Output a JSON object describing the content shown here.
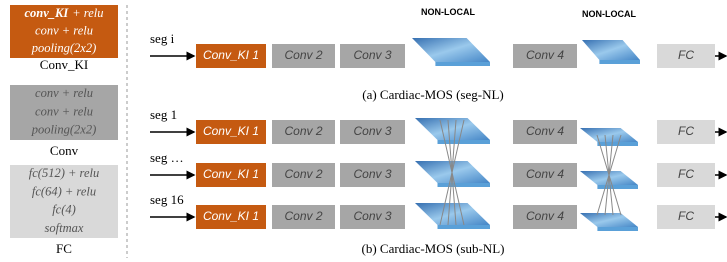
{
  "legend": [
    {
      "head": "conv_KI",
      "lines": [
        "+ relu",
        "conv + relu",
        "pooling(2x2)"
      ],
      "label": "Conv_KI"
    },
    {
      "lines": [
        "conv + relu",
        "conv + relu",
        "pooling(2x2)"
      ],
      "label": "Conv"
    },
    {
      "lines": [
        "fc(512) + relu",
        "fc(64) + relu",
        "fc(4)",
        "softmax"
      ],
      "label": "FC"
    }
  ],
  "top": {
    "headers": [
      "NON-LOCAL",
      "NON-LOCAL"
    ],
    "input": "seg i",
    "blocks": [
      "Conv_KI 1",
      "Conv 2",
      "Conv 3",
      "Conv 4",
      "FC"
    ],
    "caption": "(a) Cardiac-MOS (seg-NL)"
  },
  "bottom": {
    "inputs": [
      "seg 1",
      "seg …",
      "seg 16"
    ],
    "blocks": [
      "Conv_KI 1",
      "Conv 2",
      "Conv 3",
      "Conv 4",
      "FC"
    ],
    "caption": "(b) Cardiac-MOS (sub-NL)"
  }
}
